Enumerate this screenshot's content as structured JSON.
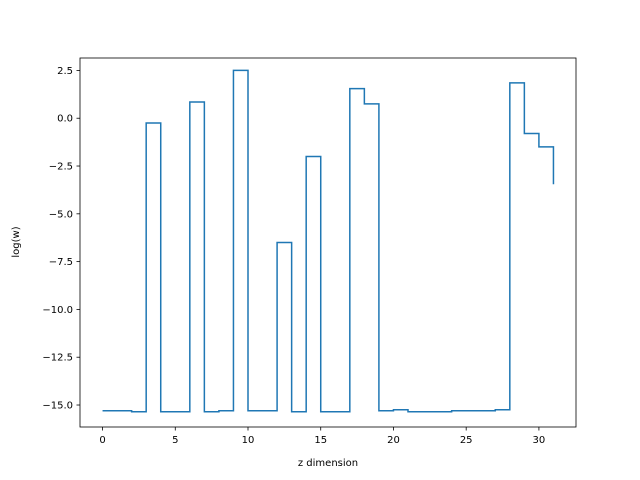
{
  "chart_data": {
    "type": "line",
    "drawstyle": "steps-post",
    "xlabel": "z dimension",
    "ylabel": "log(w)",
    "xlim": [
      -1.55,
      32.55
    ],
    "ylim": [
      -16.15,
      3.15
    ],
    "xticks": [
      0,
      5,
      10,
      15,
      20,
      25,
      30
    ],
    "xtick_labels": [
      "0",
      "5",
      "10",
      "15",
      "20",
      "25",
      "30"
    ],
    "yticks": [
      2.5,
      0.0,
      -2.5,
      -5.0,
      -7.5,
      -10.0,
      -12.5,
      -15.0
    ],
    "ytick_labels": [
      "2.5",
      "0.0",
      "−2.5",
      "−5.0",
      "−7.5",
      "−10.0",
      "−12.5",
      "−15.0"
    ],
    "grid": false,
    "color": "#1f77b4",
    "series": [
      {
        "x": [
          0,
          1,
          2,
          3,
          4,
          5,
          6,
          7,
          8,
          9,
          10,
          11,
          12,
          13,
          14,
          15,
          16,
          17,
          18,
          19,
          20,
          21,
          22,
          23,
          24,
          25,
          26,
          27,
          28,
          29,
          30,
          31
        ],
        "values": [
          -15.3,
          -15.3,
          -15.35,
          -0.25,
          -15.35,
          -15.35,
          0.85,
          -15.35,
          -15.3,
          2.5,
          -15.3,
          -15.3,
          -6.5,
          -15.35,
          -2.0,
          -15.35,
          -15.35,
          1.55,
          0.75,
          -15.3,
          -15.25,
          -15.35,
          -15.35,
          -15.35,
          -15.3,
          -15.3,
          -15.3,
          -15.25,
          1.85,
          -0.8,
          -1.5,
          -3.45
        ]
      }
    ]
  }
}
